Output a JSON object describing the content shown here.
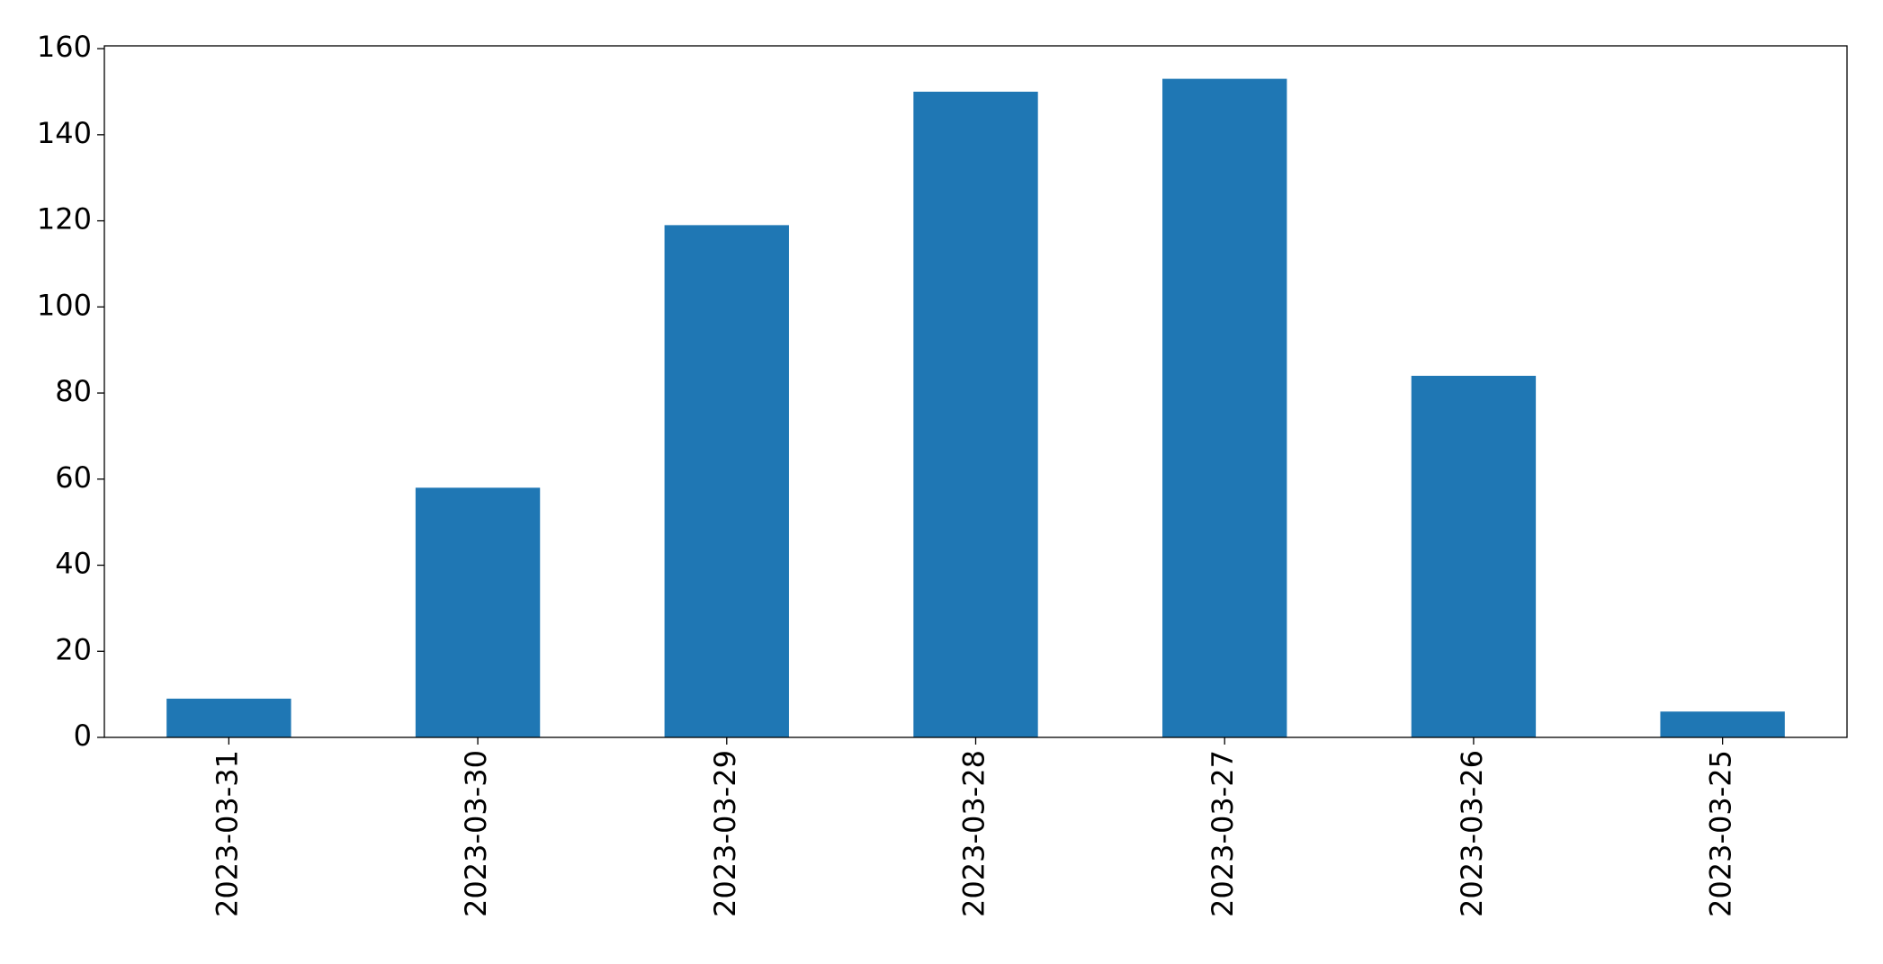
{
  "chart_data": {
    "type": "bar",
    "categories": [
      "2023-03-31",
      "2023-03-30",
      "2023-03-29",
      "2023-03-28",
      "2023-03-27",
      "2023-03-26",
      "2023-03-25"
    ],
    "values": [
      9,
      58,
      119,
      150,
      153,
      84,
      6
    ],
    "color": "#1f77b4",
    "ylim": [
      0,
      160.65
    ],
    "yticks": [
      0,
      20,
      40,
      60,
      80,
      100,
      120,
      140,
      160
    ],
    "grid": false
  }
}
